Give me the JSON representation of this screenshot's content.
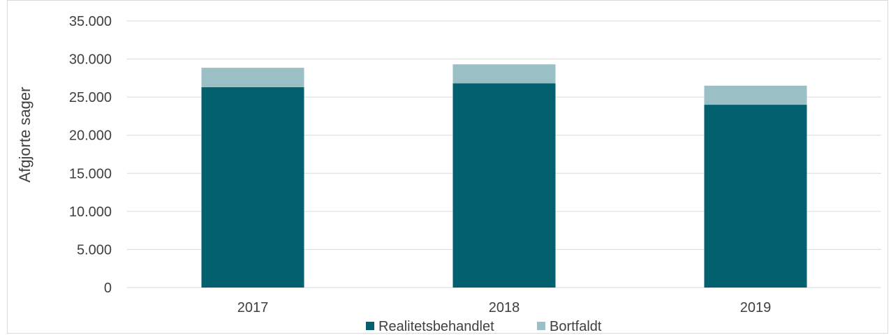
{
  "chart_data": {
    "type": "bar",
    "stacked": true,
    "categories": [
      "2017",
      "2018",
      "2019"
    ],
    "series": [
      {
        "name": "Realitetsbehandlet",
        "values": [
          26300,
          26800,
          24000
        ],
        "color": "#03616F"
      },
      {
        "name": "Bortfaldt",
        "values": [
          2550,
          2500,
          2500
        ],
        "color": "#9ABFC5"
      }
    ],
    "ylabel": "Afgjorte sager",
    "xlabel": "",
    "ylim": [
      0,
      35000
    ],
    "yticks": [
      0,
      5000,
      10000,
      15000,
      20000,
      25000,
      30000,
      35000
    ],
    "ytick_labels": [
      "0",
      "5.000",
      "10.000",
      "15.000",
      "20.000",
      "25.000",
      "30.000",
      "35.000"
    ],
    "grid": true,
    "legend_position": "bottom"
  }
}
